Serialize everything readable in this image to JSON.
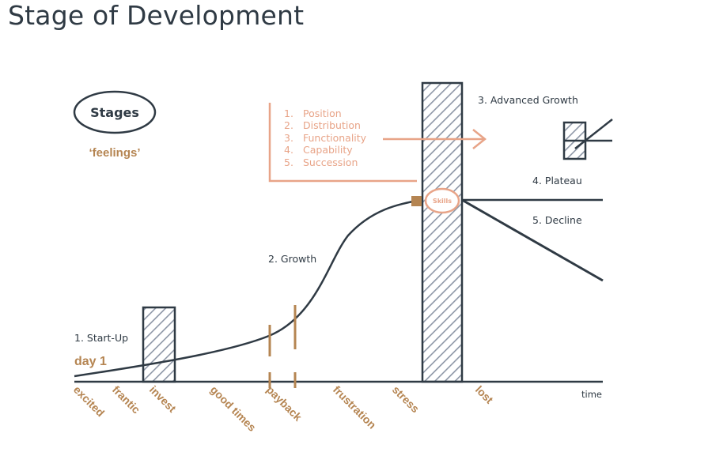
{
  "title": "Stage of Development",
  "legend": {
    "stages": "Stages",
    "feelings": "‘feelings’"
  },
  "stages": {
    "startup": "1. Start-Up",
    "growth": "2. Growth",
    "advanced": "3. Advanced Growth",
    "plateau": "4. Plateau",
    "decline": "5. Decline"
  },
  "day1": "day 1",
  "time_label": "time",
  "skills_label": "Skills",
  "steps": [
    "1.",
    "2.",
    "3.",
    "4.",
    "5."
  ],
  "steps_text": [
    "Position",
    "Distribution",
    "Functionality",
    "Capability",
    "Succession"
  ],
  "feelings": [
    "excited",
    "frantic",
    "invest",
    "good times",
    "payback",
    "frustration",
    "stress",
    "lost"
  ],
  "colors": {
    "dark": "#2f3a44",
    "tan": "#b58552",
    "salmon": "#e8a488",
    "hatch": "#8d96a6"
  }
}
